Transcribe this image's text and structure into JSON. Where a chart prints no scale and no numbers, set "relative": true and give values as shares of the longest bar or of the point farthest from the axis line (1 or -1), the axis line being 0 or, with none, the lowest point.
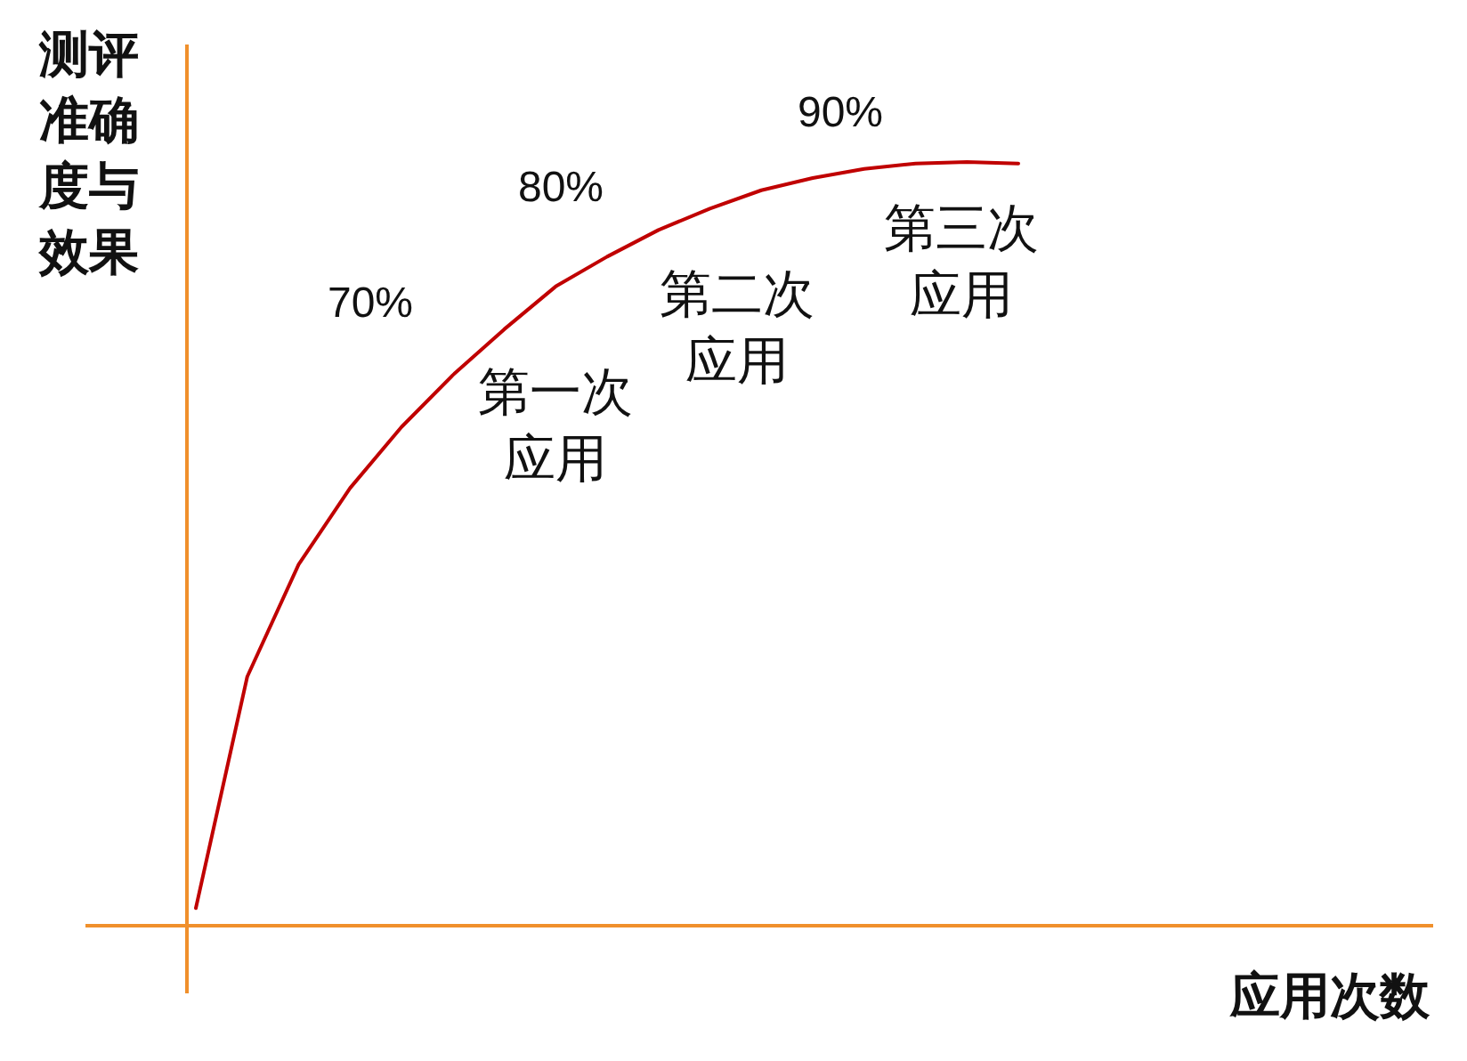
{
  "chart_data": {
    "type": "line",
    "relative": true,
    "xlabel": "应用次数",
    "ylabel": "测评准确度与效果",
    "categories": [
      null,
      null,
      null,
      null,
      null,
      null,
      null,
      null,
      null,
      null,
      null,
      null,
      null,
      null,
      null,
      null,
      null
    ],
    "series": [
      {
        "color": "#c00000",
        "values": [
          0.023,
          0.326,
          0.473,
          0.573,
          0.653,
          0.721,
          0.781,
          0.837,
          0.876,
          0.911,
          0.939,
          0.963,
          0.979,
          0.991,
          0.998,
          1,
          0.998
        ]
      }
    ],
    "annotations": [
      "70%",
      "80%",
      "90%",
      "第一次应用",
      "第二次应用",
      "第三次应用"
    ]
  }
}
